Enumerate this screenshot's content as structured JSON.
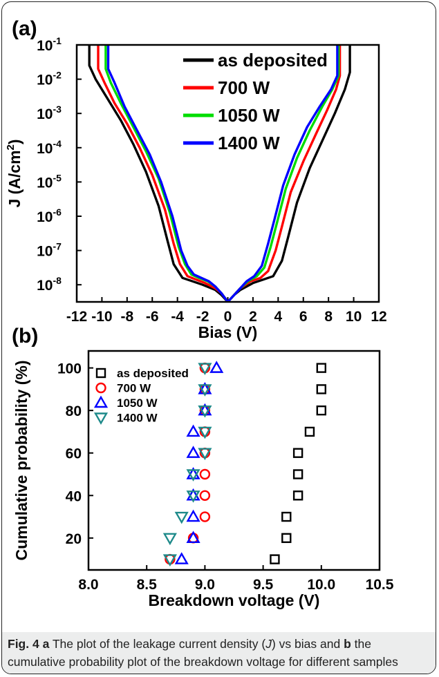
{
  "chart_data": [
    {
      "panel_label": "(a)",
      "type": "line",
      "xlabel": "Bias (V)",
      "ylabel": "J (A/cm2)",
      "xlim": [
        -12,
        12
      ],
      "xticks": [
        -12,
        -10,
        -8,
        -6,
        -4,
        -2,
        0,
        2,
        4,
        6,
        8,
        10,
        12
      ],
      "yscale": "log",
      "ylim_exp": [
        -8.5,
        -1
      ],
      "yticks_exp": [
        -8,
        -7,
        -6,
        -5,
        -4,
        -3,
        -2,
        -1
      ],
      "legend_location": "upper-center",
      "series": [
        {
          "name": "as deposited",
          "color": "#000000",
          "x": [
            -11.0,
            -11.0,
            -10.5,
            -9.5,
            -8.5,
            -7.5,
            -6.5,
            -5.5,
            -4.8,
            -4.3,
            -3.6,
            -2.8,
            -2.0,
            -1.0,
            -0.5,
            0,
            0.5,
            1.0,
            2.0,
            2.8,
            3.6,
            4.3,
            4.8,
            5.5,
            6.5,
            7.5,
            8.5,
            9.3,
            9.7,
            9.7
          ],
          "y_exp": [
            -1,
            -1.6,
            -2.0,
            -2.6,
            -3.2,
            -3.9,
            -4.7,
            -5.7,
            -6.7,
            -7.4,
            -7.8,
            -7.9,
            -8.0,
            -8.15,
            -8.3,
            -8.5,
            -8.3,
            -8.15,
            -7.95,
            -7.85,
            -7.75,
            -7.3,
            -6.6,
            -5.6,
            -4.6,
            -3.8,
            -3.0,
            -2.3,
            -1.8,
            -1
          ]
        },
        {
          "name": "700 W",
          "color": "#ff0000",
          "x": [
            -10.3,
            -10.3,
            -9.8,
            -9.0,
            -8.0,
            -7.0,
            -6.0,
            -5.0,
            -4.3,
            -3.8,
            -3.2,
            -2.5,
            -1.8,
            -1.0,
            -0.5,
            0,
            0.5,
            1.0,
            1.8,
            2.6,
            3.2,
            3.8,
            4.3,
            5.0,
            6.0,
            7.0,
            7.9,
            8.6,
            8.9,
            8.9
          ],
          "y_exp": [
            -1,
            -1.7,
            -2.1,
            -2.7,
            -3.3,
            -4.0,
            -4.8,
            -5.8,
            -6.8,
            -7.4,
            -7.75,
            -7.85,
            -7.95,
            -8.1,
            -8.25,
            -8.5,
            -8.3,
            -8.1,
            -7.9,
            -7.8,
            -7.6,
            -7.0,
            -6.3,
            -5.3,
            -4.4,
            -3.6,
            -2.9,
            -2.3,
            -1.9,
            -1
          ]
        },
        {
          "name": "1050 W",
          "color": "#00dd00",
          "x": [
            -9.7,
            -9.7,
            -9.3,
            -8.5,
            -7.5,
            -6.5,
            -5.5,
            -4.6,
            -3.9,
            -3.4,
            -2.9,
            -2.3,
            -1.6,
            -1.0,
            -0.5,
            0,
            0.5,
            1.0,
            1.6,
            2.3,
            2.9,
            3.4,
            3.9,
            4.6,
            5.5,
            6.5,
            7.5,
            8.3,
            8.8,
            8.8
          ],
          "y_exp": [
            -1,
            -1.7,
            -2.1,
            -2.7,
            -3.4,
            -4.1,
            -4.9,
            -5.9,
            -6.9,
            -7.4,
            -7.7,
            -7.8,
            -7.9,
            -8.05,
            -8.25,
            -8.5,
            -8.3,
            -8.1,
            -7.9,
            -7.75,
            -7.5,
            -6.9,
            -6.2,
            -5.2,
            -4.3,
            -3.5,
            -2.8,
            -2.3,
            -1.9,
            -1
          ]
        },
        {
          "name": "1400 W",
          "color": "#0000ff",
          "x": [
            -9.5,
            -9.5,
            -9.0,
            -8.2,
            -7.2,
            -6.2,
            -5.3,
            -4.4,
            -3.7,
            -3.2,
            -2.7,
            -2.1,
            -1.5,
            -1.0,
            -0.5,
            0,
            0.5,
            1.0,
            1.5,
            2.1,
            2.7,
            3.2,
            3.7,
            4.4,
            5.3,
            6.3,
            7.3,
            8.2,
            8.7,
            8.7
          ],
          "y_exp": [
            -1,
            -1.7,
            -2.1,
            -2.8,
            -3.5,
            -4.2,
            -5.0,
            -6.0,
            -7.0,
            -7.45,
            -7.7,
            -7.8,
            -7.9,
            -8.05,
            -8.25,
            -8.5,
            -8.3,
            -8.1,
            -7.9,
            -7.75,
            -7.45,
            -6.8,
            -6.1,
            -5.1,
            -4.2,
            -3.4,
            -2.8,
            -2.3,
            -1.9,
            -1
          ]
        }
      ]
    },
    {
      "panel_label": "(b)",
      "type": "scatter",
      "xlabel": "Breakdown voltage (V)",
      "ylabel": "Cumulative probability (%)",
      "xlim": [
        8.0,
        10.5
      ],
      "xticks": [
        8.0,
        8.5,
        9.0,
        9.5,
        10.0,
        10.5
      ],
      "xtick_labels": [
        "8.0",
        "8.5",
        "9.0",
        "9.5",
        "10.0",
        "10.5"
      ],
      "ylim": [
        5,
        108
      ],
      "yticks": [
        20,
        40,
        60,
        80,
        100
      ],
      "legend_location": "upper-left",
      "series": [
        {
          "name": "as deposited",
          "marker": "square",
          "color": "#000000",
          "x": [
            9.6,
            9.7,
            9.7,
            9.8,
            9.8,
            9.8,
            9.9,
            10.0,
            10.0,
            10.0
          ],
          "y": [
            10,
            20,
            30,
            40,
            50,
            60,
            70,
            80,
            90,
            100
          ]
        },
        {
          "name": "700 W",
          "marker": "circle",
          "color": "#ff0000",
          "x": [
            8.7,
            8.9,
            9.0,
            9.0,
            9.0,
            9.0,
            9.0,
            9.0,
            9.0,
            9.0
          ],
          "y": [
            10,
            20,
            30,
            40,
            50,
            60,
            70,
            80,
            90,
            100
          ]
        },
        {
          "name": "1050 W",
          "marker": "triangle-up",
          "color": "#0000ff",
          "x": [
            8.8,
            8.9,
            8.9,
            8.9,
            8.9,
            8.9,
            8.9,
            9.0,
            9.0,
            9.1
          ],
          "y": [
            10,
            20,
            30,
            40,
            50,
            60,
            70,
            80,
            90,
            100
          ]
        },
        {
          "name": "1400 W",
          "marker": "triangle-down",
          "color": "#1e8a8a",
          "x": [
            8.7,
            8.7,
            8.8,
            8.9,
            8.9,
            9.0,
            9.0,
            9.0,
            9.0,
            9.0
          ],
          "y": [
            10,
            20,
            30,
            40,
            50,
            60,
            70,
            80,
            90,
            100
          ]
        }
      ]
    }
  ],
  "caption": {
    "fig_label": "Fig. 4",
    "part_a": "a",
    "text_1": " The plot of the leakage current density (",
    "symbol_j": "J",
    "text_2": ") vs bias and ",
    "part_b": "b",
    "text_3": " the cumulative probability plot of the breakdown voltage for different samples"
  }
}
